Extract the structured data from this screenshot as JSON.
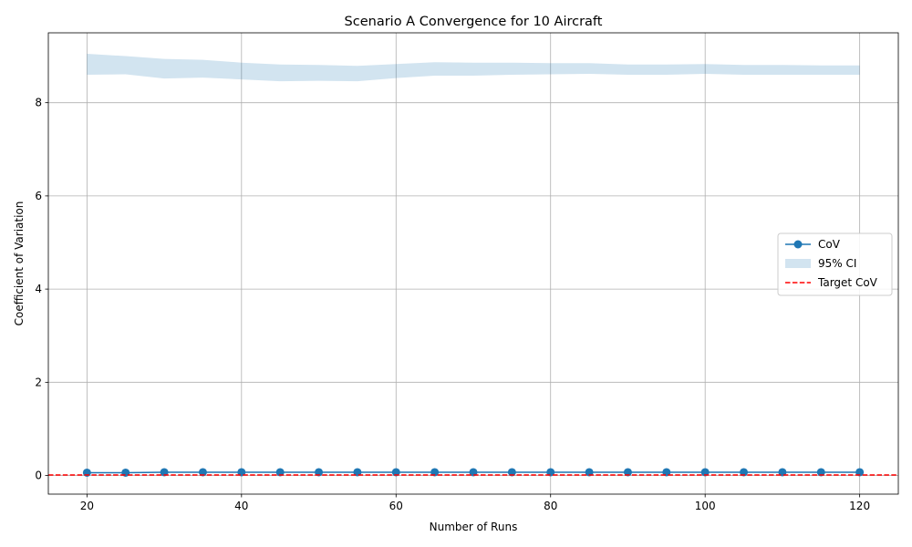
{
  "chart_data": {
    "type": "line",
    "title": "Scenario A Convergence for 10 Aircraft",
    "xlabel": "Number of Runs",
    "ylabel": "Coefficient of Variation",
    "xlim": [
      15,
      125
    ],
    "ylim": [
      -0.4,
      9.5
    ],
    "xticks": [
      20,
      40,
      60,
      80,
      100,
      120
    ],
    "yticks": [
      0,
      2,
      4,
      6,
      8
    ],
    "grid": true,
    "legend_position": "center-right",
    "x": [
      20,
      25,
      30,
      35,
      40,
      45,
      50,
      55,
      60,
      65,
      70,
      75,
      80,
      85,
      90,
      95,
      100,
      105,
      110,
      115,
      120
    ],
    "series": [
      {
        "name": "CoV",
        "kind": "line-markers",
        "color": "#1f77b4",
        "values": [
          0.06,
          0.06,
          0.07,
          0.07,
          0.07,
          0.07,
          0.07,
          0.07,
          0.07,
          0.07,
          0.07,
          0.07,
          0.07,
          0.07,
          0.07,
          0.07,
          0.07,
          0.07,
          0.07,
          0.07,
          0.07
        ]
      },
      {
        "name": "95% CI",
        "kind": "band",
        "color": "#1f77b4",
        "lower": [
          8.6,
          8.61,
          8.52,
          8.54,
          8.5,
          8.46,
          8.47,
          8.46,
          8.53,
          8.58,
          8.58,
          8.6,
          8.61,
          8.62,
          8.6,
          8.6,
          8.62,
          8.6,
          8.6,
          8.6,
          8.6
        ],
        "upper": [
          9.05,
          9.0,
          8.94,
          8.92,
          8.86,
          8.82,
          8.81,
          8.79,
          8.83,
          8.87,
          8.86,
          8.86,
          8.85,
          8.85,
          8.82,
          8.82,
          8.83,
          8.81,
          8.81,
          8.8,
          8.8
        ]
      },
      {
        "name": "Target CoV",
        "kind": "hline",
        "color": "#ff0000",
        "value": 0.01
      }
    ]
  }
}
